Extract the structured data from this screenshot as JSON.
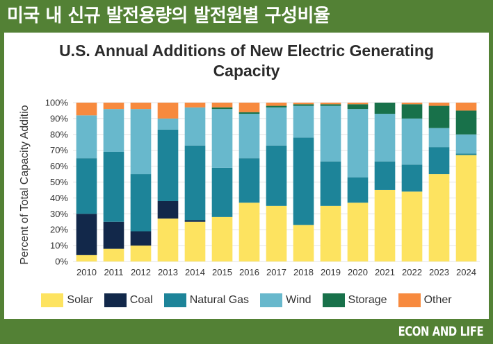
{
  "banner": {
    "title": "미국 내 신규 발전용량의 발전원별 구성비율"
  },
  "footer": {
    "brand": "ECON AND LIFE"
  },
  "chart_data": {
    "type": "bar",
    "stacked": true,
    "title_lines": [
      "U.S. Annual Additions of New Electric Generating",
      "Capacity"
    ],
    "ylabel": "Percent of Total Capacity Additio",
    "xlabel": "",
    "ylim": [
      0,
      100
    ],
    "yticks": [
      "0%",
      "10%",
      "20%",
      "30%",
      "40%",
      "50%",
      "60%",
      "70%",
      "80%",
      "90%",
      "100%"
    ],
    "grid": true,
    "legend_position": "bottom",
    "categories": [
      "2010",
      "2011",
      "2012",
      "2013",
      "2014",
      "2015",
      "2016",
      "2017",
      "2018",
      "2019",
      "2020",
      "2021",
      "2022",
      "2023",
      "2024"
    ],
    "series": [
      {
        "name": "Solar",
        "color": "#fde360",
        "values": [
          4,
          8,
          10,
          27,
          25,
          28,
          37,
          35,
          23,
          35,
          37,
          45,
          44,
          55,
          67
        ]
      },
      {
        "name": "Coal",
        "color": "#12284a",
        "values": [
          26,
          17,
          9,
          11,
          1,
          0,
          0,
          0,
          0,
          0,
          0,
          0,
          0,
          0,
          0
        ]
      },
      {
        "name": "Natural Gas",
        "color": "#1d8499",
        "values": [
          35,
          44,
          36,
          45,
          47,
          31,
          28,
          38,
          55,
          28,
          16,
          18,
          17,
          17,
          1
        ]
      },
      {
        "name": "Wind",
        "color": "#68b8cc",
        "values": [
          27,
          27,
          41,
          7,
          24,
          37,
          28,
          24,
          20,
          35,
          43,
          30,
          29,
          12,
          12
        ]
      },
      {
        "name": "Storage",
        "color": "#18714a",
        "values": [
          0,
          0,
          0,
          0,
          0,
          1,
          1,
          1,
          1,
          1,
          3,
          7,
          9,
          14,
          15
        ]
      },
      {
        "name": "Other",
        "color": "#f78a3e",
        "values": [
          8,
          4,
          4,
          10,
          3,
          3,
          6,
          2,
          1,
          1,
          1,
          0,
          1,
          2,
          5
        ]
      }
    ]
  }
}
